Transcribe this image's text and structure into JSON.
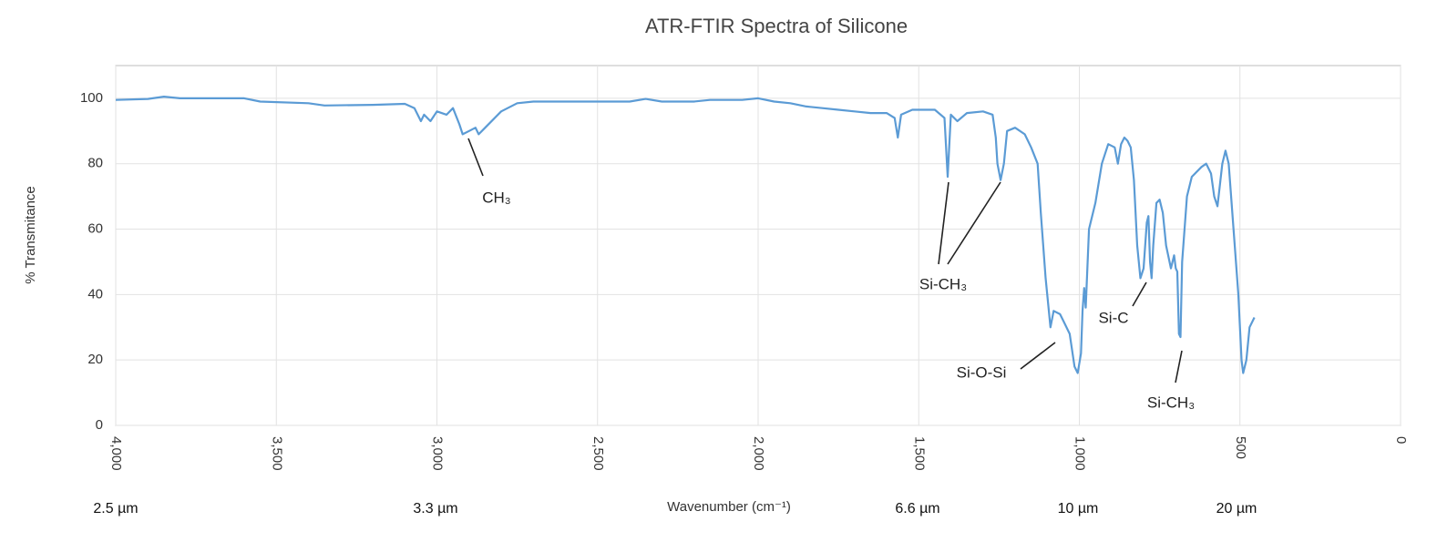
{
  "chart_data": {
    "type": "line",
    "title": "ATR-FTIR Spectra of Silicone",
    "xlabel": "Wavenumber (cm⁻¹)",
    "ylabel": "% Transmitance",
    "xlim": [
      4000,
      0
    ],
    "ylim": [
      0,
      110
    ],
    "xticks": [
      {
        "value": 4000,
        "label": "4,000"
      },
      {
        "value": 3500,
        "label": "3,500"
      },
      {
        "value": 3000,
        "label": "3,000"
      },
      {
        "value": 2500,
        "label": "2,500"
      },
      {
        "value": 2000,
        "label": "2,000"
      },
      {
        "value": 1500,
        "label": "1,500"
      },
      {
        "value": 1000,
        "label": "1,000"
      },
      500,
      0
    ],
    "yticks": [
      0,
      20,
      40,
      60,
      80,
      100
    ],
    "grid": true,
    "annotations": [
      "CH₃",
      "Si-CH₃",
      "Si-O-Si",
      "Si-C",
      "Si-CH₃"
    ],
    "secondary_labels": [
      "2.5 µm",
      "3.3 µm",
      "6.6 µm",
      "10 µm",
      "20 µm"
    ],
    "series": [
      {
        "name": "Silicone",
        "color": "#5b9bd5",
        "x": [
          4000,
          3900,
          3850,
          3800,
          3700,
          3600,
          3550,
          3400,
          3350,
          3200,
          3100,
          3070,
          3050,
          3040,
          3020,
          3000,
          2970,
          2950,
          2930,
          2920,
          2900,
          2880,
          2870,
          2850,
          2800,
          2750,
          2700,
          2500,
          2400,
          2350,
          2300,
          2200,
          2150,
          2050,
          2000,
          1950,
          1900,
          1850,
          1800,
          1750,
          1700,
          1650,
          1600,
          1575,
          1565,
          1555,
          1520,
          1450,
          1420,
          1410,
          1400,
          1380,
          1350,
          1300,
          1270,
          1260,
          1255,
          1245,
          1235,
          1225,
          1200,
          1170,
          1150,
          1130,
          1120,
          1105,
          1090,
          1080,
          1060,
          1050,
          1030,
          1015,
          1005,
          995,
          990,
          985,
          980,
          970,
          950,
          930,
          910,
          890,
          880,
          870,
          860,
          850,
          840,
          830,
          820,
          810,
          800,
          790,
          785,
          780,
          775,
          770,
          760,
          750,
          740,
          730,
          715,
          705,
          700,
          695,
          690,
          685,
          680,
          665,
          650,
          620,
          605,
          590,
          580,
          570,
          555,
          545,
          535,
          520,
          505,
          495,
          490,
          480,
          470,
          455
        ],
        "values": [
          99.5,
          99.8,
          100.5,
          100,
          100,
          100,
          99,
          98.5,
          97.8,
          98,
          98.3,
          97,
          93,
          95,
          93,
          96,
          95,
          97,
          92,
          89,
          90,
          91,
          89,
          91,
          96,
          98.5,
          99,
          99,
          99,
          99.8,
          99,
          99,
          99.5,
          99.5,
          100,
          99,
          98.5,
          97.5,
          97,
          96.5,
          96,
          95.5,
          95.5,
          94,
          88,
          95,
          96.5,
          96.5,
          94,
          76,
          95,
          93,
          95.5,
          96,
          95,
          88,
          80,
          75,
          80,
          90,
          91,
          89,
          85,
          80,
          65,
          45,
          30,
          35,
          34,
          32,
          28,
          18,
          16,
          22,
          35,
          42,
          36,
          60,
          68,
          80,
          86,
          85,
          80,
          86,
          88,
          87,
          85,
          75,
          55,
          45,
          48,
          62,
          64,
          50,
          45,
          55,
          68,
          69,
          65,
          55,
          48,
          52,
          48,
          47,
          28,
          27,
          50,
          70,
          76,
          79,
          80,
          77,
          70,
          67,
          80,
          84,
          80,
          60,
          40,
          20,
          16,
          20,
          30,
          33
        ]
      }
    ]
  }
}
